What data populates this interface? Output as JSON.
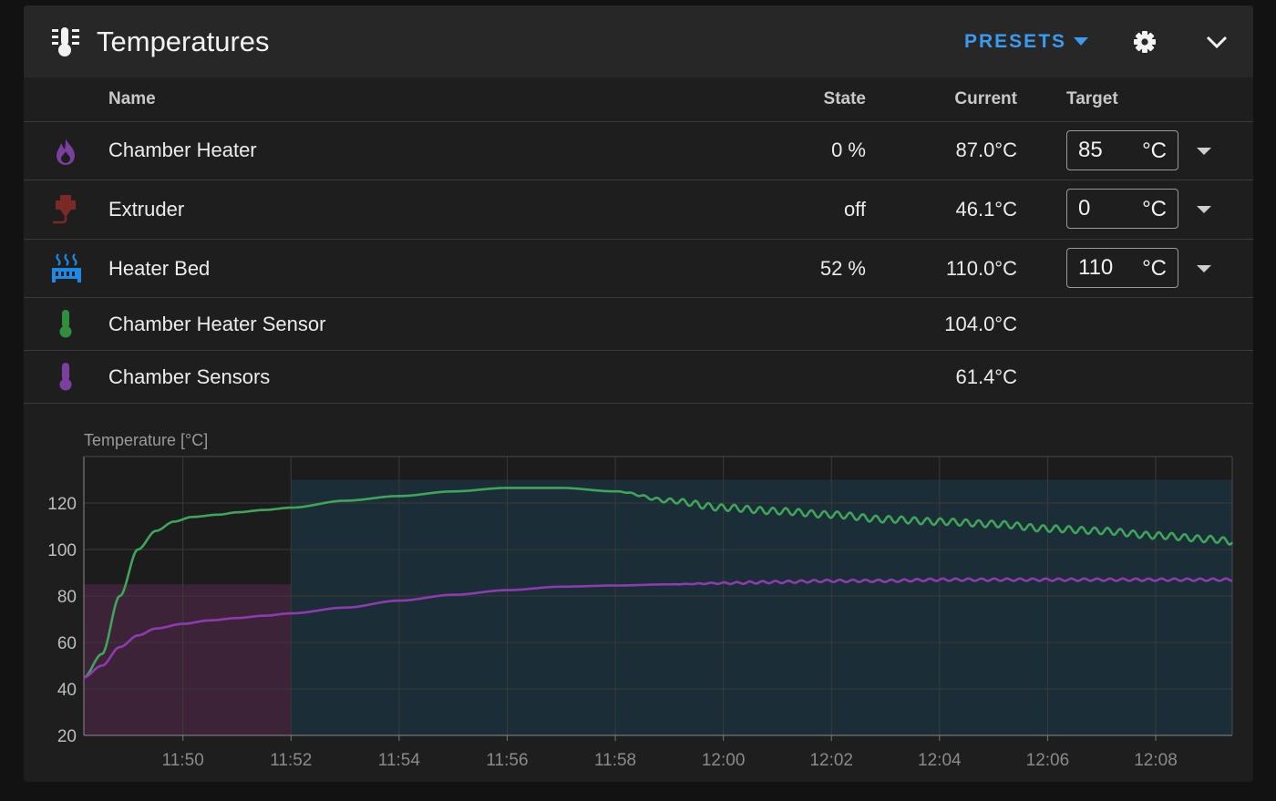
{
  "header": {
    "title": "Temperatures",
    "presets_label": "PRESETS",
    "title_icon": "thermometer-lines-icon",
    "settings_icon": "gear-icon",
    "collapse_icon": "chevron-down-icon"
  },
  "table": {
    "columns": {
      "name": "Name",
      "state": "State",
      "current": "Current",
      "target": "Target"
    },
    "rows": [
      {
        "icon": "fire-icon",
        "color": "#7b3fa0",
        "name": "Chamber Heater",
        "state": "0 %",
        "current": "87.0°C",
        "target": "85",
        "unit": "°C"
      },
      {
        "icon": "printer-nozzle-icon",
        "color": "#7a2a24",
        "name": "Extruder",
        "state": "off",
        "current": "46.1°C",
        "target": "0",
        "unit": "°C"
      },
      {
        "icon": "radiator-icon",
        "color": "#1e88e5",
        "name": "Heater Bed",
        "state": "52 %",
        "current": "110.0°C",
        "target": "110",
        "unit": "°C"
      },
      {
        "icon": "thermometer-icon",
        "color": "#2f8f3f",
        "name": "Chamber Heater Sensor",
        "state": "",
        "current": "104.0°C"
      },
      {
        "icon": "thermometer-icon",
        "color": "#7b3fa0",
        "name": "Chamber Sensors",
        "state": "",
        "current": "61.4°C"
      }
    ]
  },
  "chart_data": {
    "type": "line",
    "ylabel": "Temperature [°C]",
    "ylim": [
      20,
      140
    ],
    "yticks": [
      20,
      40,
      60,
      80,
      100,
      120
    ],
    "xticks": [
      "11:50",
      "11:52",
      "11:54",
      "11:56",
      "11:58",
      "12:00",
      "12:02",
      "12:04",
      "12:06",
      "12:08"
    ],
    "xrange_minutes": [
      "11:48:10",
      "12:09:25"
    ],
    "grid": true,
    "target_bands": [
      {
        "from": "11:48:10",
        "to": "11:52",
        "value": 85,
        "color": "#3d2338"
      },
      {
        "from": "11:52",
        "to": "12:09:25",
        "value": 85,
        "color": "#2a2a44"
      },
      {
        "from": "11:52",
        "to": "12:09:25",
        "value": 130,
        "color": "#1b2d36"
      }
    ],
    "series": [
      {
        "color": "#3fa55a",
        "x": [
          "11:48:10",
          "11:48:30",
          "11:48:50",
          "11:49:10",
          "11:49:30",
          "11:49:50",
          "11:50:10",
          "11:50:40",
          "11:51:00",
          "11:51:30",
          "11:52:00",
          "11:53:00",
          "11:54:00",
          "11:55:00",
          "11:56:00",
          "11:57:00",
          "11:58:00",
          "11:59:00",
          "12:00:00",
          "12:01:00",
          "12:02:00",
          "12:03:00",
          "12:04:00",
          "12:05:00",
          "12:06:00",
          "12:07:00",
          "12:08:00",
          "12:09:00",
          "12:09:25"
        ],
        "values": [
          45,
          55,
          80,
          100,
          108,
          112,
          114,
          115,
          116,
          117,
          118,
          121,
          123,
          125,
          126.5,
          126.5,
          125,
          121,
          118,
          116.5,
          115,
          113,
          112,
          111,
          109,
          108,
          106,
          104.5,
          103.5
        ],
        "wobble_after": "11:58:00"
      },
      {
        "color": "#8e3bb0",
        "x": [
          "11:48:10",
          "11:48:30",
          "11:48:50",
          "11:49:10",
          "11:49:30",
          "11:50:00",
          "11:50:30",
          "11:51:00",
          "11:51:30",
          "11:52:00",
          "11:53:00",
          "11:54:00",
          "11:55:00",
          "11:56:00",
          "11:57:00",
          "11:58:00",
          "11:59:00",
          "12:00:00",
          "12:01:00",
          "12:02:00",
          "12:03:00",
          "12:04:00",
          "12:05:00",
          "12:06:00",
          "12:07:00",
          "12:08:00",
          "12:09:25"
        ],
        "values": [
          45,
          50,
          58,
          63,
          66,
          68,
          69.5,
          70.5,
          71.5,
          72.5,
          75,
          78,
          80.5,
          82.5,
          84,
          84.5,
          85,
          85.5,
          86,
          86.5,
          86.5,
          87,
          87,
          87,
          87,
          87,
          87
        ],
        "wobble_after": "11:59:00"
      }
    ]
  }
}
